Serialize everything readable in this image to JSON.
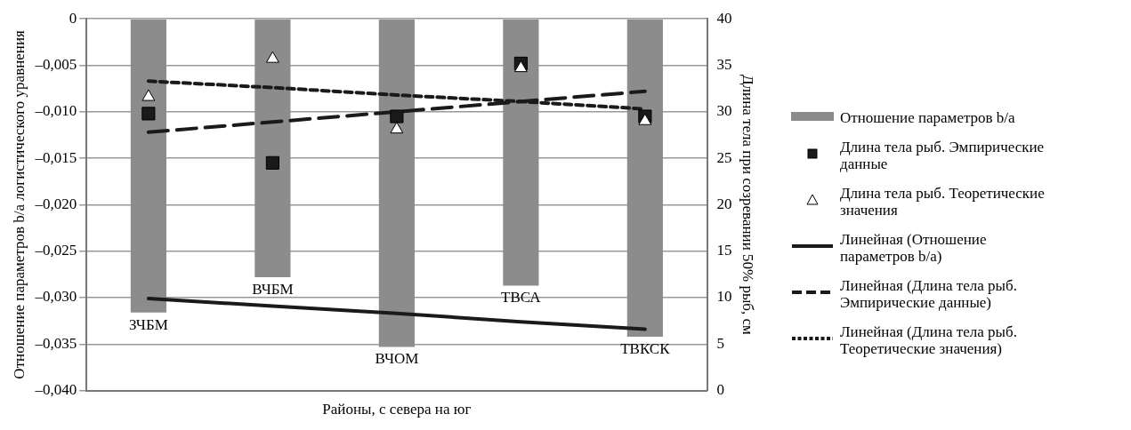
{
  "chart_data": {
    "type": "bar",
    "xlabel": "Районы, с севера на юг",
    "ylabel": "Отношение параметров b/a логистического уравнения",
    "y2label": "Длина тела при созревании 50% рыб, см",
    "categories": [
      "ЗЧБМ",
      "ВЧБМ",
      "ВЧОМ",
      "ТВСА",
      "ТВКСК"
    ],
    "series": [
      {
        "name": "Отношение параметров b/a",
        "color": "#8c8c8c",
        "values": [
          -0.0316,
          -0.0278,
          -0.0353,
          -0.0287,
          -0.0342
        ]
      },
      {
        "name": "Длина тела рыб. Эмпирические данные",
        "type": "scatter",
        "marker": "square",
        "axis": "y2",
        "color": "#1a1a1a",
        "values": [
          29.8,
          24.5,
          29.5,
          35.2,
          29.5
        ]
      },
      {
        "name": "Длина тела рыб. Теоретические значения",
        "type": "scatter",
        "marker": "triangle",
        "axis": "y2",
        "color": "#ffffff",
        "values": [
          31.6,
          35.7,
          28.1,
          34.7,
          29.0
        ]
      },
      {
        "name": "Линейная (Отношение параметров b/a)",
        "type": "line",
        "marker": "none",
        "line_style": "solid",
        "color": "#1a1a1a",
        "values": [
          -0.0301,
          -0.0309,
          -0.0317,
          -0.0326,
          -0.0334
        ]
      },
      {
        "name": "Линейная (Длина тела рыб. Эмпирические данные)",
        "type": "line",
        "marker": "none",
        "line_style": "dashed",
        "axis": "y2",
        "color": "#1a1a1a",
        "values": [
          27.8,
          28.9,
          30.0,
          31.1,
          32.2
        ]
      },
      {
        "name": "Линейная (Длина тела рыб. Теоретические значения)",
        "type": "line",
        "marker": "none",
        "line_style": "dotted",
        "axis": "y2",
        "color": "#1a1a1a",
        "values": [
          33.3,
          32.6,
          31.8,
          31.1,
          30.3
        ]
      }
    ],
    "ylim": [
      -0.04,
      0
    ],
    "yticks": [
      {
        "value": -0.04,
        "label": "–0,040"
      },
      {
        "value": -0.035,
        "label": "–0,035"
      },
      {
        "value": -0.03,
        "label": "–0,030"
      },
      {
        "value": -0.025,
        "label": "–0,025"
      },
      {
        "value": -0.02,
        "label": "–0,020"
      },
      {
        "value": -0.015,
        "label": "–0,015"
      },
      {
        "value": -0.01,
        "label": "–0,010"
      },
      {
        "value": -0.005,
        "label": "–0,005"
      },
      0
    ],
    "y2lim": [
      0,
      40
    ],
    "y2ticks": [
      0,
      5,
      10,
      15,
      20,
      25,
      30,
      35,
      40
    ],
    "grid": "y",
    "legend": "right",
    "tick_labels": "y",
    "data_labels": false
  }
}
